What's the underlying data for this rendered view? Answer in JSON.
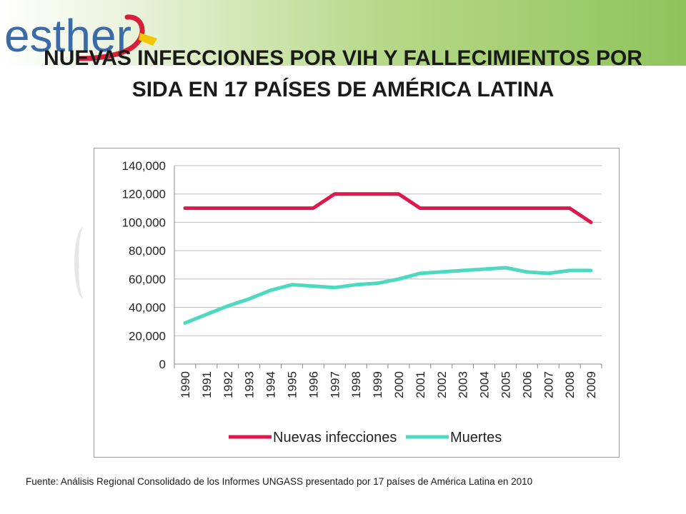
{
  "logo": {
    "text": "esther"
  },
  "title": "NUEVAS INFECCIONES POR VIH Y FALLECIMIENTOS POR SIDA EN 17 PAÍSES DE AMÉRICA LATINA",
  "source": "Fuente: Análisis Regional Consolidado de los Informes UNGASS presentado por 17 países de América Latina en 2010",
  "colors": {
    "series1": "#e0174a",
    "series2": "#4dd9c0",
    "grid": "#bdbdbd"
  },
  "chart_data": {
    "type": "line",
    "title": "",
    "xlabel": "",
    "ylabel": "",
    "ylim": [
      0,
      140000
    ],
    "yticks": [
      0,
      20000,
      40000,
      60000,
      80000,
      100000,
      120000,
      140000
    ],
    "ytick_labels": [
      "0",
      "20,000",
      "40,000",
      "60,000",
      "80,000",
      "100,000",
      "120,000",
      "140,000"
    ],
    "grid": true,
    "legend": "bottom",
    "x": [
      "1990",
      "1991",
      "1992",
      "1993",
      "1994",
      "1995",
      "1996",
      "1997",
      "1998",
      "1999",
      "2000",
      "2001",
      "2002",
      "2003",
      "2004",
      "2005",
      "2006",
      "2007",
      "2008",
      "2009"
    ],
    "series": [
      {
        "name": "Nuevas infecciones",
        "color": "#e0174a",
        "values": [
          110000,
          110000,
          110000,
          110000,
          110000,
          110000,
          110000,
          120000,
          120000,
          120000,
          120000,
          110000,
          110000,
          110000,
          110000,
          110000,
          110000,
          110000,
          110000,
          100000
        ]
      },
      {
        "name": "Muertes",
        "color": "#4dd9c0",
        "values": [
          29000,
          35000,
          41000,
          46000,
          52000,
          56000,
          55000,
          54000,
          56000,
          57000,
          60000,
          64000,
          65000,
          66000,
          67000,
          68000,
          65000,
          64000,
          66000,
          66000
        ]
      }
    ]
  }
}
